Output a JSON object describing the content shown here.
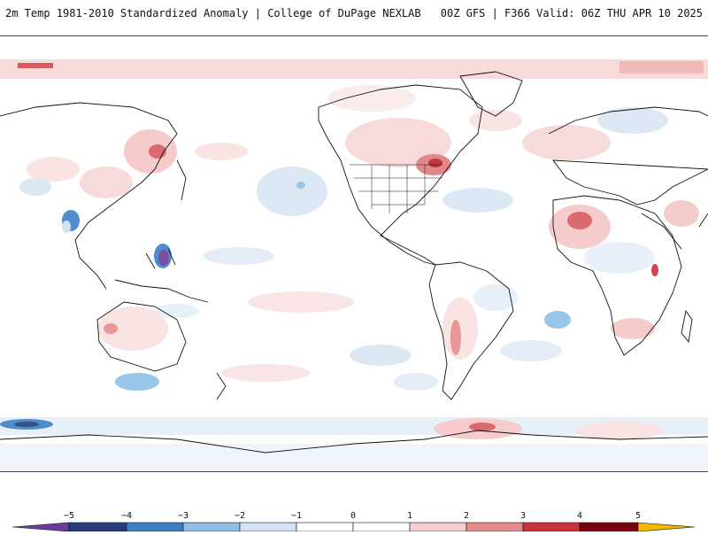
{
  "header": {
    "title": "2m Temp 1981-2010 Standardized Anomaly | College of DuPage NEXLAB",
    "run_info": "00Z GFS | F366 Valid: 06Z THU APR 10 2025"
  },
  "colorbar": {
    "labels": [
      "−5",
      "−4",
      "−3",
      "−2",
      "−1",
      "0",
      "1",
      "2",
      "3",
      "4",
      "5"
    ],
    "colors": [
      "#6a3d9a",
      "#253d7a",
      "#3d80c6",
      "#8fbfe6",
      "#d3e3f3",
      "#ffffff",
      "#ffffff",
      "#f4cdcd",
      "#e68b8b",
      "#c9333b",
      "#7a0010",
      "#f5b800"
    ]
  },
  "map": {
    "projection": "cylindrical-global",
    "ocean_color": "#ffffff",
    "coastline_color": "#111111"
  }
}
